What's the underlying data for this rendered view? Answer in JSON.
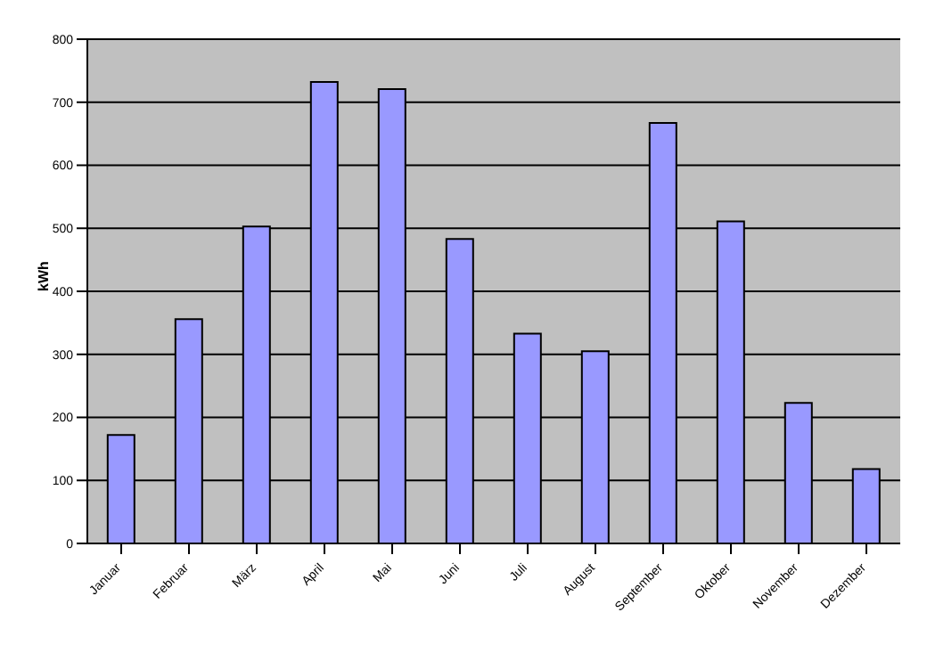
{
  "chart_data": {
    "type": "bar",
    "ylabel": "kWh",
    "categories": [
      "Januar",
      "Februar",
      "März",
      "April",
      "Mai",
      "Juni",
      "Juli",
      "August",
      "September",
      "Oktober",
      "November",
      "Dezember"
    ],
    "values": [
      172,
      356,
      503,
      732,
      721,
      483,
      333,
      305,
      667,
      511,
      223,
      118
    ],
    "color": "#9999ff",
    "ylim": [
      0,
      800
    ],
    "yticks": [
      0,
      100,
      200,
      300,
      400,
      500,
      600,
      700,
      800
    ],
    "grid": "y",
    "legend": false
  }
}
